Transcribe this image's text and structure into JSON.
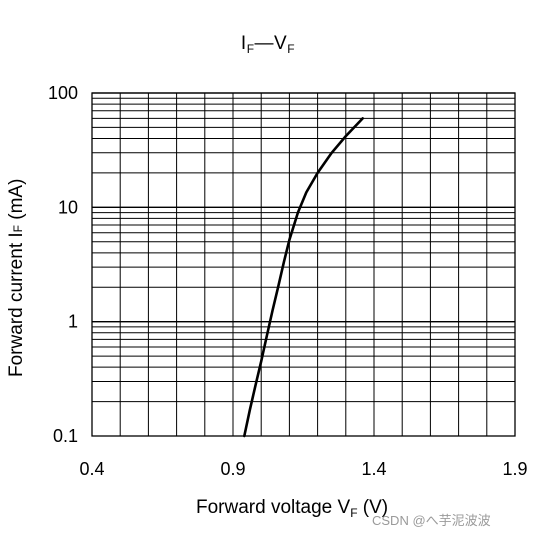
{
  "chart_data": {
    "type": "line",
    "title_main": "I",
    "title_sub1": "F",
    "title_dash": "—V",
    "title_sub2": "F",
    "ylabel_main": "Forward current  I",
    "ylabel_sub": "F",
    "ylabel_unit": " (mA)",
    "xlabel_main": "Forward voltage  V",
    "xlabel_sub": "F",
    "xlabel_unit": " (V)",
    "xlim": [
      0.4,
      1.9
    ],
    "ylim": [
      0.1,
      100
    ],
    "yscale": "log",
    "grid": true,
    "x_ticks": [
      "0.4",
      "0.9",
      "1.4",
      "1.9"
    ],
    "y_ticks": [
      "0.1",
      "1",
      "10",
      "100"
    ],
    "series": [
      {
        "x": [
          0.94,
          0.96,
          0.98,
          1.0,
          1.02,
          1.04,
          1.06,
          1.08,
          1.1,
          1.13,
          1.16,
          1.2,
          1.25,
          1.3,
          1.36
        ],
        "y": [
          0.1,
          0.17,
          0.28,
          0.45,
          0.75,
          1.25,
          2.0,
          3.3,
          5.2,
          9.0,
          13.5,
          20.0,
          30.0,
          42.0,
          60.0
        ]
      }
    ]
  },
  "watermark": "CSDN @へ芋泥波波"
}
